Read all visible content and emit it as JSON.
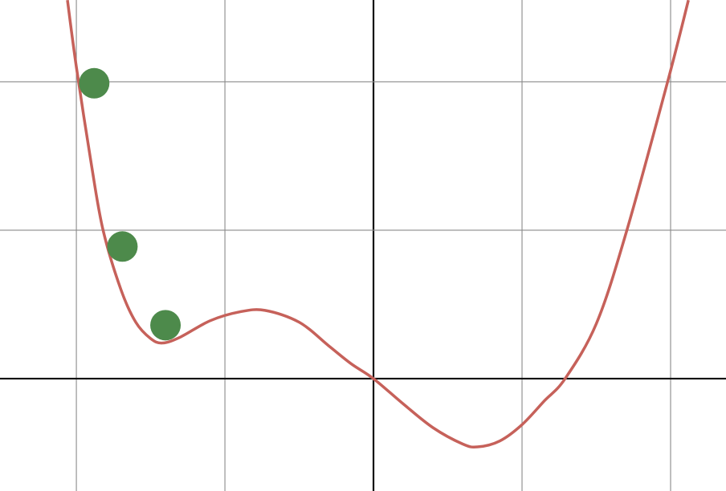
{
  "chart_data": {
    "type": "line",
    "xlim": [
      -2.514,
      2.373
    ],
    "ylim": [
      -0.757,
      2.551
    ],
    "xticks": [
      -2,
      -1,
      0,
      1,
      2
    ],
    "yticks": [
      0,
      1,
      2
    ],
    "grid": true,
    "series": [
      {
        "type": "line",
        "color": "#c6615a",
        "x": [
          -2.06,
          -2.0,
          -1.9,
          -1.82,
          -1.7,
          -1.6,
          -1.5,
          -1.42,
          -1.3,
          -1.1,
          -0.9,
          -0.73,
          -0.5,
          -0.3,
          -0.15,
          0,
          0.2,
          0.4,
          0.6,
          0.7,
          0.85,
          1.0,
          1.15,
          1.29,
          1.5,
          1.7,
          1.98,
          2.12
        ],
        "values": [
          2.55,
          2.1,
          1.45,
          1.0,
          0.6,
          0.38,
          0.27,
          0.24,
          0.28,
          0.39,
          0.45,
          0.46,
          0.38,
          0.22,
          0.1,
          0,
          -0.17,
          -0.33,
          -0.44,
          -0.46,
          -0.42,
          -0.31,
          -0.15,
          0,
          0.37,
          0.98,
          2.0,
          2.55
        ]
      },
      {
        "type": "scatter",
        "color": "#4d8a4b",
        "x": [
          -1.88,
          -1.69,
          -1.4
        ],
        "values": [
          1.99,
          0.89,
          0.36
        ]
      }
    ]
  }
}
